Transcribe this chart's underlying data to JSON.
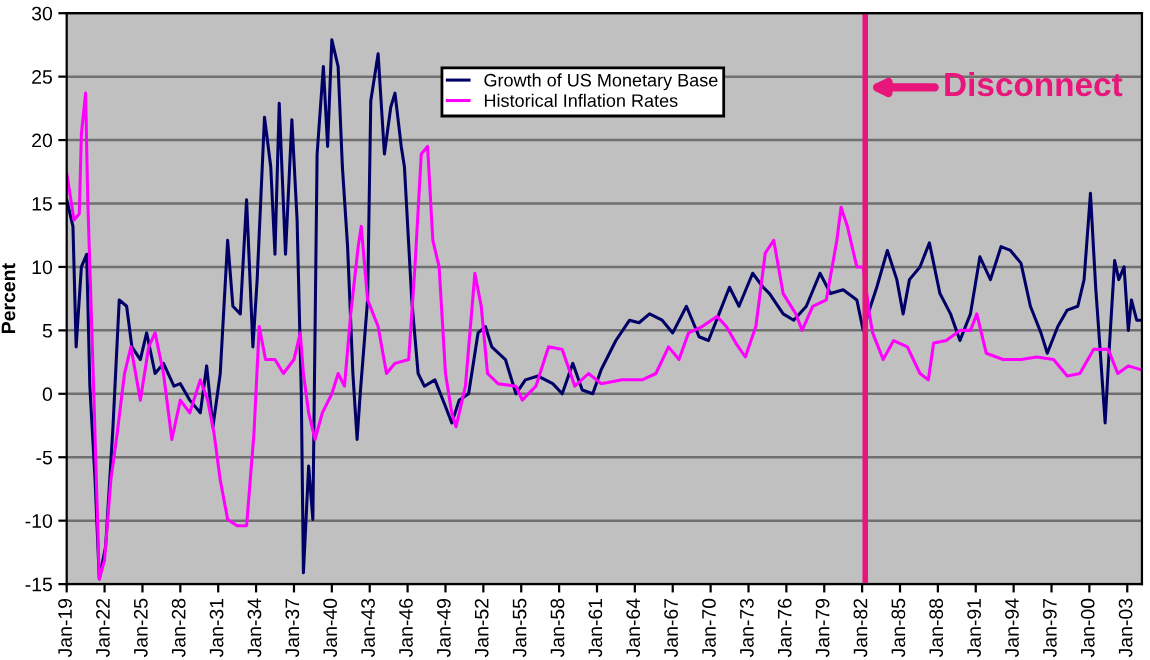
{
  "chart_data": {
    "type": "line",
    "ylabel": "Percent",
    "xlim": [
      "1919-01",
      "2004-03"
    ],
    "ylim": [
      -15,
      30
    ],
    "yticks": [
      -15,
      -10,
      -5,
      0,
      5,
      10,
      15,
      20,
      25,
      30
    ],
    "xticks": [
      {
        "value": "1919-01",
        "label": "Jan-19"
      },
      {
        "value": "1922-01",
        "label": "Jan-22"
      },
      {
        "value": "1925-01",
        "label": "Jan-25"
      },
      {
        "value": "1928-01",
        "label": "Jan-28"
      },
      {
        "value": "1931-01",
        "label": "Jan-31"
      },
      {
        "value": "1934-01",
        "label": "Jan-34"
      },
      {
        "value": "1937-01",
        "label": "Jan-37"
      },
      {
        "value": "1940-01",
        "label": "Jan-40"
      },
      {
        "value": "1943-01",
        "label": "Jan-43"
      },
      {
        "value": "1946-01",
        "label": "Jan-46"
      },
      {
        "value": "1949-01",
        "label": "Jan-49"
      },
      {
        "value": "1952-01",
        "label": "Jan-52"
      },
      {
        "value": "1955-01",
        "label": "Jan-55"
      },
      {
        "value": "1958-01",
        "label": "Jan-58"
      },
      {
        "value": "1961-01",
        "label": "Jan-61"
      },
      {
        "value": "1964-01",
        "label": "Jan-64"
      },
      {
        "value": "1967-01",
        "label": "Jan-67"
      },
      {
        "value": "1970-01",
        "label": "Jan-70"
      },
      {
        "value": "1973-01",
        "label": "Jan-73"
      },
      {
        "value": "1976-01",
        "label": "Jan-76"
      },
      {
        "value": "1979-01",
        "label": "Jan-79"
      },
      {
        "value": "1982-01",
        "label": "Jan-82"
      },
      {
        "value": "1985-01",
        "label": "Jan-85"
      },
      {
        "value": "1988-01",
        "label": "Jan-88"
      },
      {
        "value": "1991-01",
        "label": "Jan-91"
      },
      {
        "value": "1994-01",
        "label": "Jan-94"
      },
      {
        "value": "1997-01",
        "label": "Jan-97"
      },
      {
        "value": "2000-01",
        "label": "Jan-00"
      },
      {
        "value": "2003-01",
        "label": "Jan-03"
      }
    ],
    "grid": "y",
    "legend": "top",
    "marker": "none",
    "line_style": "solid",
    "ref_lines": [
      {
        "axis": "x",
        "value": "1982-04",
        "label": "Disconnect",
        "color": "#e8157a"
      }
    ],
    "series": [
      {
        "name": "Growth of US Monetary Base",
        "color": "#000066",
        "x": [
          "1919-01",
          "1919-07",
          "1919-10",
          "1920-03",
          "1920-08",
          "1920-11",
          "1921-04",
          "1921-08",
          "1922-02",
          "1922-09",
          "1923-03",
          "1923-10",
          "1924-03",
          "1924-11",
          "1925-05",
          "1926-01",
          "1926-09",
          "1927-07",
          "1928-01",
          "1928-10",
          "1929-08",
          "1930-02",
          "1930-08",
          "1931-03",
          "1931-10",
          "1932-03",
          "1932-10",
          "1933-04",
          "1933-10",
          "1934-02",
          "1934-09",
          "1935-03",
          "1935-07",
          "1935-11",
          "1936-05",
          "1936-11",
          "1937-04",
          "1937-08",
          "1937-10",
          "1938-03",
          "1938-07",
          "1938-11",
          "1939-05",
          "1939-09",
          "1940-01",
          "1940-07",
          "1940-11",
          "1941-04",
          "1941-09",
          "1942-01",
          "1942-04",
          "1942-11",
          "1943-02",
          "1943-09",
          "1944-03",
          "1944-09",
          "1945-01",
          "1945-07",
          "1945-10",
          "1946-05",
          "1946-11",
          "1947-05",
          "1948-03",
          "1949-01",
          "1949-07",
          "1950-02",
          "1950-11",
          "1951-08",
          "1952-03",
          "1952-09",
          "1953-10",
          "1954-08",
          "1955-05",
          "1956-05",
          "1957-07",
          "1958-04",
          "1959-02",
          "1959-11",
          "1960-09",
          "1961-05",
          "1962-07",
          "1963-08",
          "1964-05",
          "1965-03",
          "1966-03",
          "1967-01",
          "1968-02",
          "1969-02",
          "1969-11",
          "1970-09",
          "1971-07",
          "1972-04",
          "1973-05",
          "1974-03",
          "1974-09",
          "1975-10",
          "1976-08",
          "1977-08",
          "1978-09",
          "1979-07",
          "1980-07",
          "1981-08",
          "1982-02",
          "1982-09",
          "1983-03",
          "1984-01",
          "1984-10",
          "1985-04",
          "1985-10",
          "1986-08",
          "1987-05",
          "1988-03",
          "1989-01",
          "1989-10",
          "1990-08",
          "1991-05",
          "1992-03",
          "1993-01",
          "1993-10",
          "1994-08",
          "1995-05",
          "1996-03",
          "1996-09",
          "1997-07",
          "1998-04",
          "1999-02",
          "1999-08",
          "2000-02",
          "2000-07",
          "2000-11",
          "2001-04",
          "2001-08",
          "2002-01",
          "2002-05",
          "2002-10",
          "2003-02",
          "2003-05",
          "2003-10",
          "2004-02"
        ],
        "values": [
          15.3,
          13.2,
          3.7,
          10,
          11,
          0.6,
          -6.8,
          -14.6,
          -12,
          -2.6,
          7.4,
          6.9,
          3.7,
          2.7,
          4.8,
          1.6,
          2.4,
          0.6,
          0.8,
          -0.5,
          -1.5,
          2.2,
          -2.6,
          1.6,
          12.1,
          6.9,
          6.3,
          15.3,
          3.7,
          9,
          21.8,
          17.9,
          11,
          22.9,
          11,
          21.6,
          13.7,
          0,
          -14.1,
          -5.7,
          -9.9,
          18.9,
          25.8,
          19.5,
          27.9,
          25.8,
          17.9,
          11.6,
          1.6,
          -3.6,
          0,
          7.4,
          23.1,
          26.8,
          18.9,
          22.6,
          23.7,
          19.5,
          17.9,
          7.4,
          1.6,
          0.6,
          1.1,
          -1,
          -2.3,
          -0.5,
          0,
          4.8,
          5.3,
          3.7,
          2.7,
          0,
          1.1,
          1.4,
          0.8,
          0,
          2.4,
          0.3,
          0,
          1.9,
          4.2,
          5.8,
          5.6,
          6.3,
          5.8,
          4.8,
          6.9,
          4.5,
          4.2,
          6.3,
          8.4,
          6.9,
          9.5,
          8.4,
          7.9,
          6.3,
          5.8,
          6.9,
          9.5,
          7.9,
          8.2,
          7.4,
          5,
          6.9,
          8.4,
          11.3,
          9,
          6.3,
          9,
          10,
          11.9,
          7.9,
          6.3,
          4.2,
          6.3,
          10.8,
          9,
          11.6,
          11.3,
          10.3,
          6.9,
          4.8,
          3.2,
          5.3,
          6.6,
          6.9,
          9,
          15.8,
          8.4,
          3.7,
          -2.3,
          3.7,
          10.5,
          9,
          10,
          5,
          7.4,
          5.8,
          5.8
        ]
      },
      {
        "name": "Historical Inflation Rates",
        "color": "#ff00ff",
        "x": [
          "1919-01",
          "1919-08",
          "1920-01",
          "1920-03",
          "1920-07",
          "1920-09",
          "1921-03",
          "1921-08",
          "1922-01",
          "1922-07",
          "1923-01",
          "1923-08",
          "1924-02",
          "1924-11",
          "1925-07",
          "1926-01",
          "1926-09",
          "1927-05",
          "1928-01",
          "1928-10",
          "1929-08",
          "1930-03",
          "1930-09",
          "1931-03",
          "1931-10",
          "1932-07",
          "1933-04",
          "1933-11",
          "1934-04",
          "1934-10",
          "1935-07",
          "1936-03",
          "1937-01",
          "1937-07",
          "1937-10",
          "1938-03",
          "1938-09",
          "1939-04",
          "1940-01",
          "1940-07",
          "1941-01",
          "1941-07",
          "1942-02",
          "1942-05",
          "1942-11",
          "1943-09",
          "1944-05",
          "1945-01",
          "1946-02",
          "1946-08",
          "1947-02",
          "1947-08",
          "1948-01",
          "1948-07",
          "1949-01",
          "1949-07",
          "1949-11",
          "1950-08",
          "1951-05",
          "1951-11",
          "1952-05",
          "1953-03",
          "1954-08",
          "1955-02",
          "1956-03",
          "1957-03",
          "1958-04",
          "1959-04",
          "1960-05",
          "1961-05",
          "1963-01",
          "1964-08",
          "1965-09",
          "1966-09",
          "1967-07",
          "1968-04",
          "1969-05",
          "1970-07",
          "1971-04",
          "1972-01",
          "1972-10",
          "1973-08",
          "1974-05",
          "1975-01",
          "1975-10",
          "1976-10",
          "1977-04",
          "1978-02",
          "1979-03",
          "1980-01",
          "1980-05",
          "1980-11",
          "1981-08",
          "1982-02",
          "1982-08",
          "1982-11",
          "1983-09",
          "1984-07",
          "1985-08",
          "1986-08",
          "1987-04",
          "1987-09",
          "1988-09",
          "1989-10",
          "1990-08",
          "1991-02",
          "1991-11",
          "1993-03",
          "1994-08",
          "1995-11",
          "1997-03",
          "1998-04",
          "1999-04",
          "2000-05",
          "2001-07",
          "2002-04",
          "2003-02",
          "2004-02"
        ],
        "values": [
          17.4,
          13.7,
          14.2,
          20.5,
          23.7,
          15.3,
          -0.5,
          -14.6,
          -13.1,
          -6.8,
          -3.1,
          1.6,
          3.7,
          -0.5,
          3.7,
          4.8,
          1.6,
          -3.6,
          -0.5,
          -1.5,
          1.1,
          -0.5,
          -3.1,
          -6.8,
          -9.9,
          -10.4,
          -10.4,
          -3.1,
          5.3,
          2.7,
          2.7,
          1.6,
          2.7,
          4.8,
          1.6,
          -1.5,
          -3.6,
          -1.5,
          0,
          1.6,
          0.6,
          6.3,
          11.6,
          13.2,
          7.4,
          5.3,
          1.6,
          2.4,
          2.7,
          10,
          18.9,
          19.5,
          12.1,
          10,
          1.6,
          -1.5,
          -2.6,
          0.6,
          9.5,
          6.9,
          1.6,
          0.8,
          0.6,
          -0.5,
          0.6,
          3.7,
          3.5,
          0.6,
          1.6,
          0.8,
          1.1,
          1.1,
          1.6,
          3.7,
          2.7,
          4.8,
          5.3,
          6.1,
          5.3,
          4,
          2.9,
          5.3,
          11.1,
          12.1,
          7.9,
          6.3,
          5,
          6.9,
          7.4,
          12.1,
          14.7,
          13.2,
          10,
          10,
          6.3,
          4.8,
          2.7,
          4.2,
          3.7,
          1.6,
          1.1,
          4,
          4.2,
          5,
          5,
          6.3,
          3.2,
          2.7,
          2.7,
          2.9,
          2.7,
          1.4,
          1.6,
          3.5,
          3.5,
          1.6,
          2.2,
          1.9
        ]
      }
    ]
  }
}
